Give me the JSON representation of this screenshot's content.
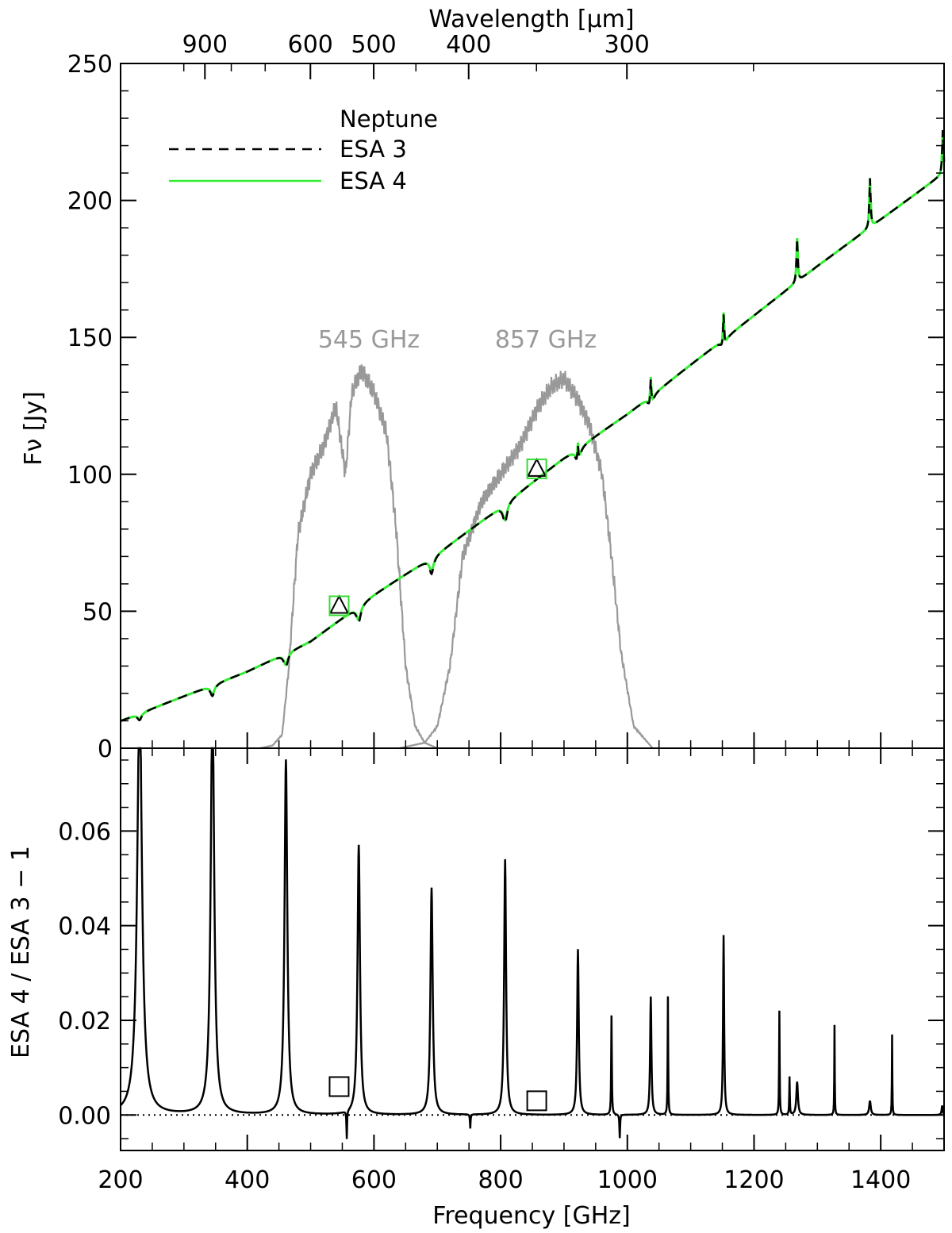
{
  "chart_data": [
    {
      "type": "line",
      "panel": "top",
      "ylabel": "Fν [Jy]",
      "top_axis_label": "Wavelength [μm]",
      "top_axis_ticks": [
        {
          "label": "900",
          "wavelength_um": 900
        },
        {
          "label": "600",
          "wavelength_um": 600
        },
        {
          "label": "500",
          "wavelength_um": 500
        },
        {
          "label": "400",
          "wavelength_um": 400
        },
        {
          "label": "300",
          "wavelength_um": 300
        }
      ],
      "xlim": [
        200,
        1500
      ],
      "ylim": [
        0,
        250
      ],
      "yticks": [
        {
          "value": 0,
          "label": "0"
        },
        {
          "value": 50,
          "label": "50"
        },
        {
          "value": 100,
          "label": "100"
        },
        {
          "value": 150,
          "label": "150"
        },
        {
          "value": 200,
          "label": "200"
        },
        {
          "value": 250,
          "label": "250"
        }
      ],
      "legend": {
        "title": "Neptune",
        "placement": "top-left",
        "entries": [
          {
            "label": "ESA 3",
            "style": "dashed",
            "color": "#000000"
          },
          {
            "label": "ESA 4",
            "style": "solid",
            "color": "#33ee33"
          }
        ]
      },
      "continuum": {
        "x": [
          200,
          300,
          400,
          500,
          600,
          700,
          800,
          900,
          1000,
          1100,
          1200,
          1300,
          1400,
          1500
        ],
        "y": [
          10,
          19,
          28,
          39,
          56,
          71,
          88,
          106,
          122,
          140,
          158,
          176,
          193,
          210
        ]
      },
      "lines": [
        {
          "x": 230,
          "depth": 2.5
        },
        {
          "x": 345,
          "depth": 4
        },
        {
          "x": 461,
          "depth": 5
        },
        {
          "x": 576,
          "depth": 6
        },
        {
          "x": 691,
          "depth": 6
        },
        {
          "x": 807,
          "depth": 7
        },
        {
          "x": 922,
          "depth": 7
        },
        {
          "x": 1037,
          "depth": 6
        },
        {
          "x": 1152,
          "depth": 5
        }
      ],
      "spikes": [
        {
          "x": 922,
          "height": 8
        },
        {
          "x": 1037,
          "height": 12
        },
        {
          "x": 1152,
          "height": 14
        },
        {
          "x": 1268,
          "height": 16
        },
        {
          "x": 1383,
          "height": 18
        },
        {
          "x": 1498,
          "height": 16
        }
      ],
      "bands": [
        {
          "label": "545 GHz",
          "x": [
            420,
            440,
            455,
            465,
            480,
            500,
            520,
            540,
            555,
            565,
            580,
            600,
            620,
            635,
            650,
            665,
            680,
            700
          ],
          "y": [
            0,
            1,
            5,
            28,
            78,
            100,
            110,
            125,
            100,
            130,
            138,
            130,
            115,
            80,
            30,
            8,
            2,
            0
          ]
        },
        {
          "label": "857 GHz",
          "x": [
            640,
            680,
            700,
            720,
            740,
            770,
            800,
            830,
            860,
            880,
            900,
            920,
            940,
            960,
            975,
            990,
            1010,
            1040
          ],
          "y": [
            0,
            2,
            8,
            30,
            70,
            90,
            100,
            110,
            125,
            132,
            135,
            128,
            118,
            100,
            70,
            35,
            8,
            0
          ]
        }
      ],
      "markers": [
        {
          "x": 545,
          "y": 52,
          "symbol": "triangle",
          "color": "#000000"
        },
        {
          "x": 545,
          "y": 52,
          "symbol": "square",
          "color": "#33dd33"
        },
        {
          "x": 857,
          "y": 102,
          "symbol": "triangle",
          "color": "#000000"
        },
        {
          "x": 857,
          "y": 102,
          "symbol": "square",
          "color": "#33dd33"
        }
      ]
    },
    {
      "type": "line",
      "panel": "bottom",
      "xlabel": "Frequency [GHz]",
      "ylabel": "ESA 4 / ESA 3 − 1",
      "xlim": [
        200,
        1500
      ],
      "ylim": [
        -0.0075,
        0.0775
      ],
      "xticks": [
        {
          "value": 200,
          "label": "200"
        },
        {
          "value": 400,
          "label": "400"
        },
        {
          "value": 600,
          "label": "600"
        },
        {
          "value": 800,
          "label": "800"
        },
        {
          "value": 1000,
          "label": "1000"
        },
        {
          "value": 1200,
          "label": "1200"
        },
        {
          "value": 1400,
          "label": "1400"
        }
      ],
      "yticks": [
        {
          "value": 0,
          "label": "0.00"
        },
        {
          "value": 0.02,
          "label": "0.02"
        },
        {
          "value": 0.04,
          "label": "0.04"
        },
        {
          "value": 0.06,
          "label": "0.06"
        }
      ],
      "zero_line": {
        "y": 0,
        "style": "dotted"
      },
      "peaks": [
        {
          "x": 230,
          "height": 0.09,
          "width": 4.5
        },
        {
          "x": 345,
          "height": 0.09,
          "width": 3.2
        },
        {
          "x": 461,
          "height": 0.075,
          "width": 2.6
        },
        {
          "x": 576,
          "height": 0.057,
          "width": 2.3
        },
        {
          "x": 691,
          "height": 0.048,
          "width": 2.1
        },
        {
          "x": 807,
          "height": 0.054,
          "width": 1.8
        },
        {
          "x": 922,
          "height": 0.035,
          "width": 1.5
        },
        {
          "x": 975,
          "height": 0.021,
          "width": 0.6
        },
        {
          "x": 1037,
          "height": 0.025,
          "width": 1.2
        },
        {
          "x": 1064,
          "height": 0.025,
          "width": 0.5
        },
        {
          "x": 1152,
          "height": 0.038,
          "width": 1.0
        },
        {
          "x": 1240,
          "height": 0.022,
          "width": 0.5
        },
        {
          "x": 1256,
          "height": 0.008,
          "width": 0.5
        },
        {
          "x": 1268,
          "height": 0.007,
          "width": 1.5
        },
        {
          "x": 1327,
          "height": 0.019,
          "width": 0.4
        },
        {
          "x": 1383,
          "height": 0.003,
          "width": 1.5
        },
        {
          "x": 1418,
          "height": 0.017,
          "width": 0.4
        },
        {
          "x": 1497,
          "height": 0.002,
          "width": 1.0
        }
      ],
      "dips": [
        {
          "x": 557,
          "depth": 0.006
        },
        {
          "x": 752,
          "depth": 0.003
        },
        {
          "x": 988,
          "depth": 0.005
        }
      ],
      "markers": [
        {
          "x": 545,
          "y": 0.006,
          "symbol": "square",
          "color": "#000000"
        },
        {
          "x": 857,
          "y": 0.003,
          "symbol": "square",
          "color": "#000000"
        }
      ]
    }
  ]
}
